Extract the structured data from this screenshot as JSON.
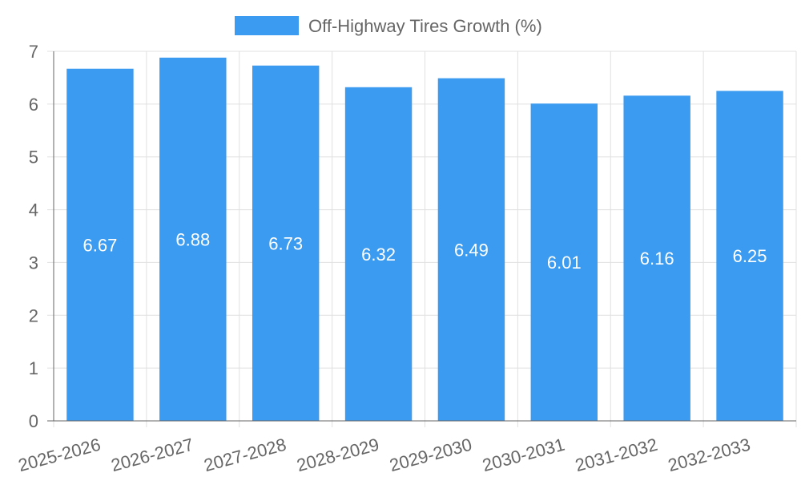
{
  "chart_data": {
    "type": "bar",
    "categories": [
      "2025-2026",
      "2026-2027",
      "2027-2028",
      "2028-2029",
      "2029-2030",
      "2030-2031",
      "2031-2032",
      "2032-2033"
    ],
    "series": [
      {
        "name": "Off-Highway Tires Growth (%)",
        "values": [
          6.67,
          6.88,
          6.73,
          6.32,
          6.49,
          6.01,
          6.16,
          6.25
        ]
      }
    ],
    "ylim": [
      0,
      7
    ],
    "yticks": [
      0,
      1,
      2,
      3,
      4,
      5,
      6,
      7
    ],
    "grid": true,
    "legend_position": "top",
    "data_labels": true,
    "colors": {
      "bar": "#3a9bf0",
      "grid": "#e0e0e0",
      "axis": "#666666"
    }
  }
}
